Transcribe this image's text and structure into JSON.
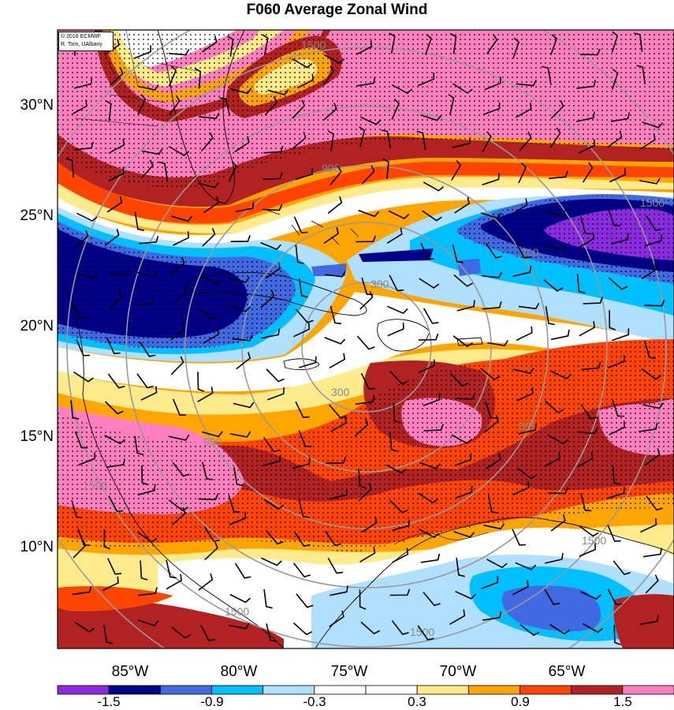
{
  "title": "F060 Average Zonal Wind",
  "credit": {
    "line1": "© 2016 ECMWF",
    "line2": "R. Torn, UAlbany"
  },
  "lat_labels": [
    "30°N",
    "25°N",
    "20°N",
    "15°N",
    "10°N"
  ],
  "lon_labels": [
    "85°W",
    "80°W",
    "75°W",
    "70°W",
    "65°W"
  ],
  "radius_labels": [
    "300",
    "900",
    "1500"
  ],
  "colorbar": {
    "labels": [
      "-1.5",
      "-0.9",
      "-0.3",
      "0.3",
      "0.9",
      "1.5"
    ],
    "colors": [
      "#8a2be2",
      "#00008b",
      "#4169e1",
      "#00bfff",
      "#b0e0ff",
      "#ffffff",
      "#ffffff",
      "#ffeb8c",
      "#ffa500",
      "#ff4500",
      "#b22222",
      "#ff7fbf"
    ]
  },
  "fill_colors": {
    "purple": "#8a2be2",
    "navy": "#00008b",
    "royal": "#4169e1",
    "cyan": "#00bfff",
    "lightblue": "#b0e0ff",
    "white": "#ffffff",
    "yellow": "#ffeb8c",
    "orange": "#ffa500",
    "redorange": "#ff4500",
    "darkred": "#b22222",
    "pink": "#ff7fbf"
  }
}
